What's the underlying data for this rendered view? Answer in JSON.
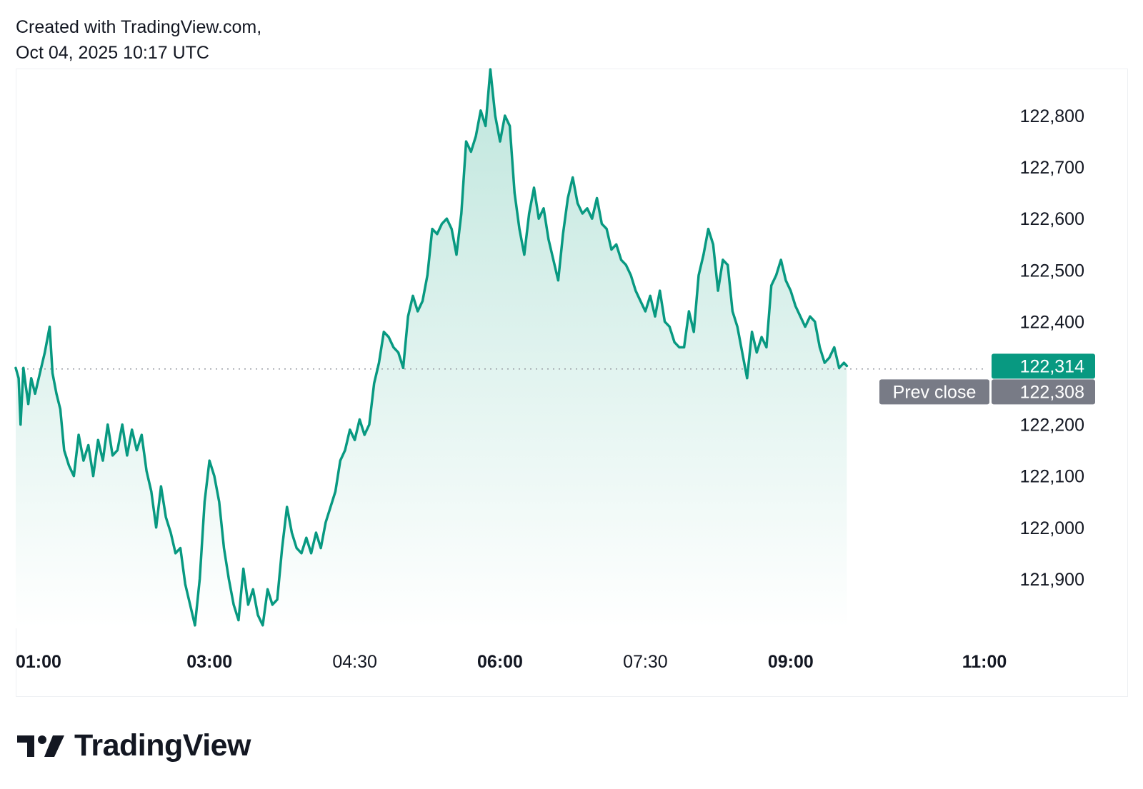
{
  "header": {
    "line1": "Created with TradingView.com,",
    "line2": "Oct 04, 2025 10:17 UTC"
  },
  "brand": {
    "name": "TradingView"
  },
  "colors": {
    "line": "#089981",
    "area_top": "#bfe6dd",
    "area_bottom": "#ffffff",
    "last_price_badge": "#089981",
    "prev_close_badge": "#787b86",
    "dotted_line": "#9598a1"
  },
  "chart_data": {
    "type": "area",
    "ylim": [
      121800,
      122900
    ],
    "y_ticks": [
      {
        "value": 122800,
        "label": "122,800"
      },
      {
        "value": 122700,
        "label": "122,700"
      },
      {
        "value": 122600,
        "label": "122,600"
      },
      {
        "value": 122500,
        "label": "122,500"
      },
      {
        "value": 122400,
        "label": "122,400"
      },
      {
        "value": 122200,
        "label": "122,200"
      },
      {
        "value": 122100,
        "label": "122,100"
      },
      {
        "value": 122000,
        "label": "122,000"
      },
      {
        "value": 121900,
        "label": "121,900"
      }
    ],
    "x_ticks": [
      {
        "value": 1.0,
        "label": "01:00",
        "bold": true
      },
      {
        "value": 3.0,
        "label": "03:00",
        "bold": true
      },
      {
        "value": 4.5,
        "label": "04:30",
        "bold": false
      },
      {
        "value": 6.0,
        "label": "06:00",
        "bold": true
      },
      {
        "value": 7.5,
        "label": "07:30",
        "bold": false
      },
      {
        "value": 9.0,
        "label": "09:00",
        "bold": true
      },
      {
        "value": 11.0,
        "label": "11:00",
        "bold": true
      }
    ],
    "last_price": {
      "value": 122314,
      "label": "122,314"
    },
    "prev_close": {
      "value": 122308,
      "label": "122,308",
      "tag": "Prev close"
    },
    "series": [
      {
        "points": [
          [
            1.0,
            122310
          ],
          [
            1.03,
            122290
          ],
          [
            1.05,
            122200
          ],
          [
            1.08,
            122310
          ],
          [
            1.1,
            122280
          ],
          [
            1.13,
            122240
          ],
          [
            1.16,
            122290
          ],
          [
            1.2,
            122260
          ],
          [
            1.25,
            122300
          ],
          [
            1.3,
            122340
          ],
          [
            1.35,
            122390
          ],
          [
            1.38,
            122300
          ],
          [
            1.42,
            122260
          ],
          [
            1.46,
            122230
          ],
          [
            1.5,
            122150
          ],
          [
            1.55,
            122120
          ],
          [
            1.6,
            122100
          ],
          [
            1.65,
            122180
          ],
          [
            1.7,
            122130
          ],
          [
            1.75,
            122160
          ],
          [
            1.8,
            122100
          ],
          [
            1.85,
            122170
          ],
          [
            1.9,
            122130
          ],
          [
            1.95,
            122200
          ],
          [
            2.0,
            122140
          ],
          [
            2.05,
            122150
          ],
          [
            2.1,
            122200
          ],
          [
            2.15,
            122140
          ],
          [
            2.2,
            122190
          ],
          [
            2.25,
            122150
          ],
          [
            2.3,
            122180
          ],
          [
            2.35,
            122110
          ],
          [
            2.4,
            122070
          ],
          [
            2.45,
            122000
          ],
          [
            2.5,
            122080
          ],
          [
            2.55,
            122020
          ],
          [
            2.6,
            121990
          ],
          [
            2.65,
            121950
          ],
          [
            2.7,
            121960
          ],
          [
            2.75,
            121890
          ],
          [
            2.8,
            121850
          ],
          [
            2.85,
            121810
          ],
          [
            2.9,
            121900
          ],
          [
            2.95,
            122050
          ],
          [
            3.0,
            122130
          ],
          [
            3.05,
            122100
          ],
          [
            3.1,
            122050
          ],
          [
            3.15,
            121960
          ],
          [
            3.2,
            121900
          ],
          [
            3.25,
            121850
          ],
          [
            3.3,
            121820
          ],
          [
            3.35,
            121920
          ],
          [
            3.4,
            121850
          ],
          [
            3.45,
            121880
          ],
          [
            3.5,
            121830
          ],
          [
            3.55,
            121810
          ],
          [
            3.6,
            121880
          ],
          [
            3.65,
            121850
          ],
          [
            3.7,
            121860
          ],
          [
            3.75,
            121960
          ],
          [
            3.8,
            122040
          ],
          [
            3.85,
            121990
          ],
          [
            3.9,
            121960
          ],
          [
            3.95,
            121950
          ],
          [
            4.0,
            121980
          ],
          [
            4.05,
            121950
          ],
          [
            4.1,
            121990
          ],
          [
            4.15,
            121960
          ],
          [
            4.2,
            122010
          ],
          [
            4.25,
            122040
          ],
          [
            4.3,
            122070
          ],
          [
            4.35,
            122130
          ],
          [
            4.4,
            122150
          ],
          [
            4.45,
            122190
          ],
          [
            4.5,
            122170
          ],
          [
            4.55,
            122210
          ],
          [
            4.6,
            122180
          ],
          [
            4.65,
            122200
          ],
          [
            4.7,
            122280
          ],
          [
            4.75,
            122320
          ],
          [
            4.8,
            122380
          ],
          [
            4.85,
            122370
          ],
          [
            4.9,
            122350
          ],
          [
            4.95,
            122340
          ],
          [
            5.0,
            122310
          ],
          [
            5.05,
            122410
          ],
          [
            5.1,
            122450
          ],
          [
            5.15,
            122420
          ],
          [
            5.2,
            122440
          ],
          [
            5.25,
            122490
          ],
          [
            5.3,
            122580
          ],
          [
            5.35,
            122570
          ],
          [
            5.4,
            122590
          ],
          [
            5.45,
            122600
          ],
          [
            5.5,
            122580
          ],
          [
            5.55,
            122530
          ],
          [
            5.6,
            122610
          ],
          [
            5.65,
            122750
          ],
          [
            5.7,
            122730
          ],
          [
            5.75,
            122760
          ],
          [
            5.8,
            122810
          ],
          [
            5.85,
            122780
          ],
          [
            5.9,
            122890
          ],
          [
            5.95,
            122800
          ],
          [
            6.0,
            122750
          ],
          [
            6.05,
            122800
          ],
          [
            6.1,
            122780
          ],
          [
            6.15,
            122650
          ],
          [
            6.2,
            122580
          ],
          [
            6.25,
            122530
          ],
          [
            6.3,
            122610
          ],
          [
            6.35,
            122660
          ],
          [
            6.4,
            122600
          ],
          [
            6.45,
            122620
          ],
          [
            6.5,
            122560
          ],
          [
            6.55,
            122520
          ],
          [
            6.6,
            122480
          ],
          [
            6.65,
            122570
          ],
          [
            6.7,
            122640
          ],
          [
            6.75,
            122680
          ],
          [
            6.8,
            122630
          ],
          [
            6.85,
            122610
          ],
          [
            6.9,
            122620
          ],
          [
            6.95,
            122600
          ],
          [
            7.0,
            122640
          ],
          [
            7.05,
            122590
          ],
          [
            7.1,
            122580
          ],
          [
            7.15,
            122540
          ],
          [
            7.2,
            122550
          ],
          [
            7.25,
            122520
          ],
          [
            7.3,
            122510
          ],
          [
            7.35,
            122490
          ],
          [
            7.4,
            122460
          ],
          [
            7.45,
            122440
          ],
          [
            7.5,
            122420
          ],
          [
            7.55,
            122450
          ],
          [
            7.6,
            122410
          ],
          [
            7.65,
            122460
          ],
          [
            7.7,
            122400
          ],
          [
            7.75,
            122390
          ],
          [
            7.8,
            122360
          ],
          [
            7.85,
            122350
          ],
          [
            7.9,
            122350
          ],
          [
            7.95,
            122420
          ],
          [
            8.0,
            122380
          ],
          [
            8.05,
            122490
          ],
          [
            8.1,
            122530
          ],
          [
            8.15,
            122580
          ],
          [
            8.2,
            122550
          ],
          [
            8.25,
            122460
          ],
          [
            8.3,
            122520
          ],
          [
            8.35,
            122510
          ],
          [
            8.4,
            122420
          ],
          [
            8.45,
            122390
          ],
          [
            8.5,
            122340
          ],
          [
            8.55,
            122290
          ],
          [
            8.6,
            122380
          ],
          [
            8.65,
            122340
          ],
          [
            8.7,
            122370
          ],
          [
            8.75,
            122350
          ],
          [
            8.8,
            122470
          ],
          [
            8.85,
            122490
          ],
          [
            8.9,
            122520
          ],
          [
            8.95,
            122480
          ],
          [
            9.0,
            122460
          ],
          [
            9.05,
            122430
          ],
          [
            9.1,
            122410
          ],
          [
            9.15,
            122390
          ],
          [
            9.2,
            122410
          ],
          [
            9.25,
            122400
          ],
          [
            9.3,
            122350
          ],
          [
            9.35,
            122320
          ],
          [
            9.4,
            122330
          ],
          [
            9.45,
            122350
          ],
          [
            9.5,
            122310
          ],
          [
            9.55,
            122320
          ],
          [
            9.58,
            122314
          ]
        ]
      }
    ]
  }
}
